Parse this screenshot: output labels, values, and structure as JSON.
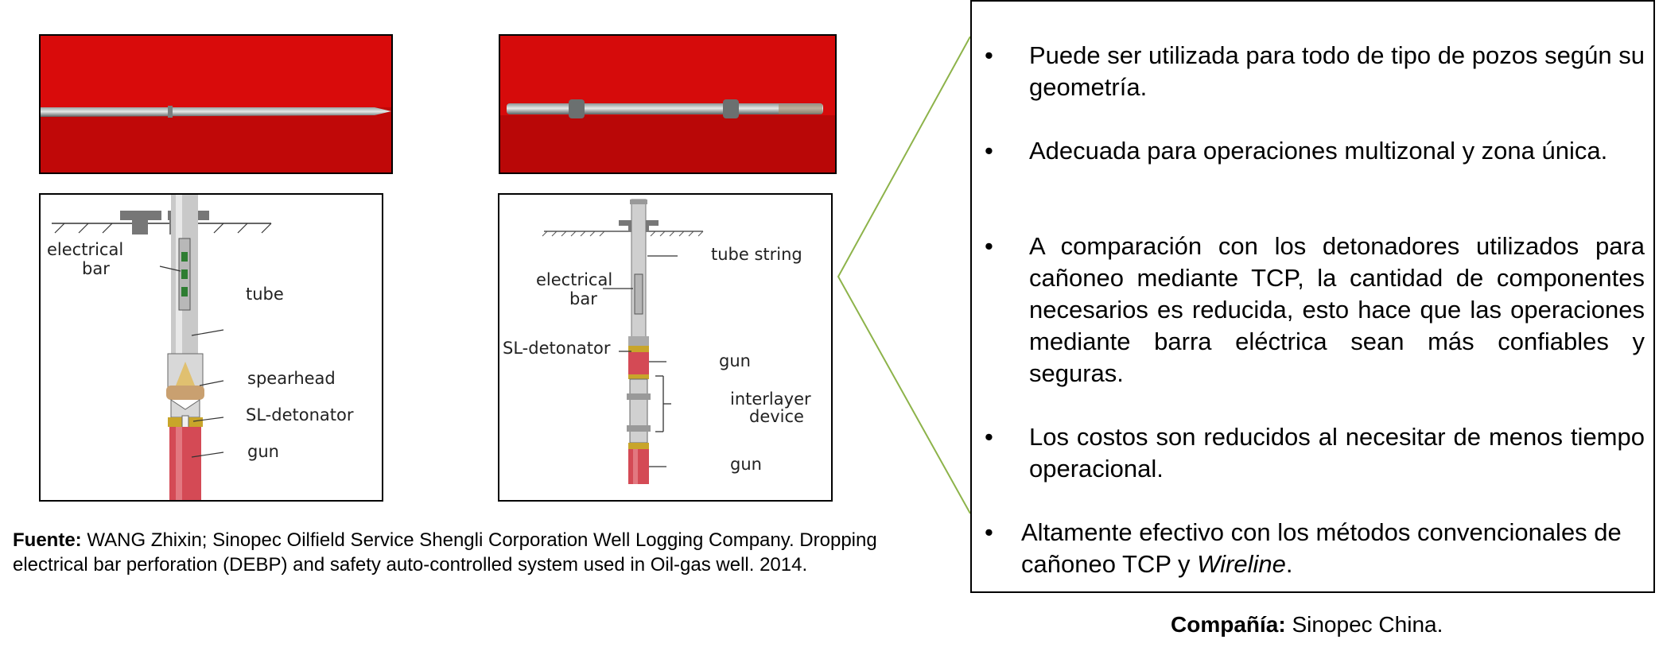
{
  "diagram_left": {
    "labels": {
      "electrical": "electrical",
      "bar": "bar",
      "tube": "tube",
      "spearhead": "spearhead",
      "sl_detonator": "SL-detonator",
      "gun": "gun"
    }
  },
  "diagram_right": {
    "labels": {
      "tube_string": "tube string",
      "electrical": "electrical",
      "bar": "bar",
      "sl_detonator": "SL-detonator",
      "gun_top": "gun",
      "interlayer": "interlayer",
      "device": "device",
      "gun_bottom": "gun"
    }
  },
  "source": {
    "label": "Fuente:",
    "text": " WANG Zhixin; Sinopec Oilfield Service Shengli Corporation Well Logging Company. Dropping electrical bar perforation (DEBP) and safety auto-controlled system used in Oil-gas well. 2014."
  },
  "bullets": [
    {
      "marker": "•",
      "text": "Puede ser utilizada para todo de tipo de pozos según su geometría."
    },
    {
      "marker": "•",
      "text": "Adecuada para operaciones multizonal y zona única."
    },
    {
      "marker": "•",
      "text": "A comparación con los detonadores utilizados para cañoneo mediante TCP, la cantidad de componentes necesarios es reducida, esto hace que las operaciones mediante barra eléctrica sean más confiables y seguras."
    },
    {
      "marker": "•",
      "text": "Los costos son reducidos al necesitar de menos tiempo operacional."
    }
  ],
  "last_bullet": {
    "marker": "•",
    "text_before": "Altamente efectivo con los métodos convencionales de cañoneo TCP y ",
    "italic": "Wireline",
    "text_after": "."
  },
  "company": {
    "label": "Compañía:",
    "text": " Sinopec China."
  }
}
